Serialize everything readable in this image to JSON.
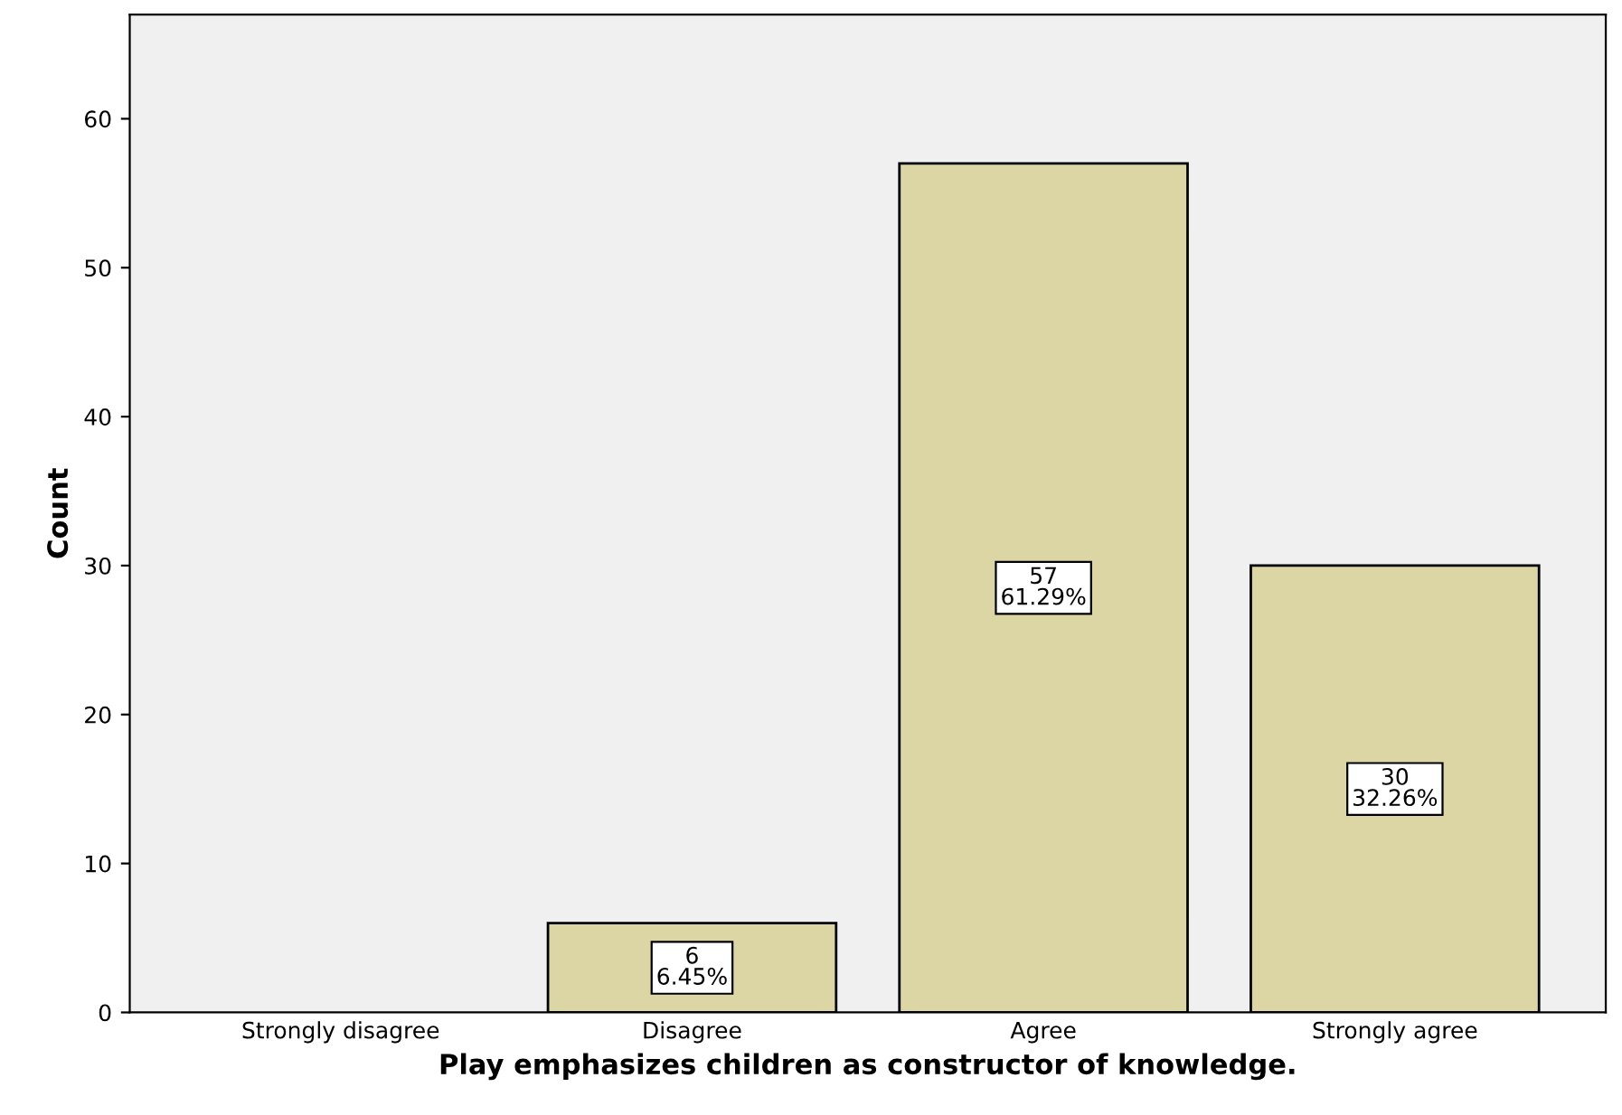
{
  "chart_data": {
    "type": "bar",
    "xlabel": "Play emphasizes children as constructor of knowledge.",
    "ylabel": "Count",
    "categories": [
      "Strongly disagree",
      "Disagree",
      "Agree",
      "Strongly agree"
    ],
    "values": [
      null,
      6,
      57,
      30
    ],
    "value_labels": [
      null,
      "6\n6.45%",
      "57\n61.29%",
      "30\n32.26%"
    ],
    "color": "#dcd6a4",
    "ylim": [
      0,
      67
    ],
    "yticks": [
      0,
      10,
      20,
      30,
      40,
      50,
      60
    ],
    "grid": false,
    "legend": false
  }
}
